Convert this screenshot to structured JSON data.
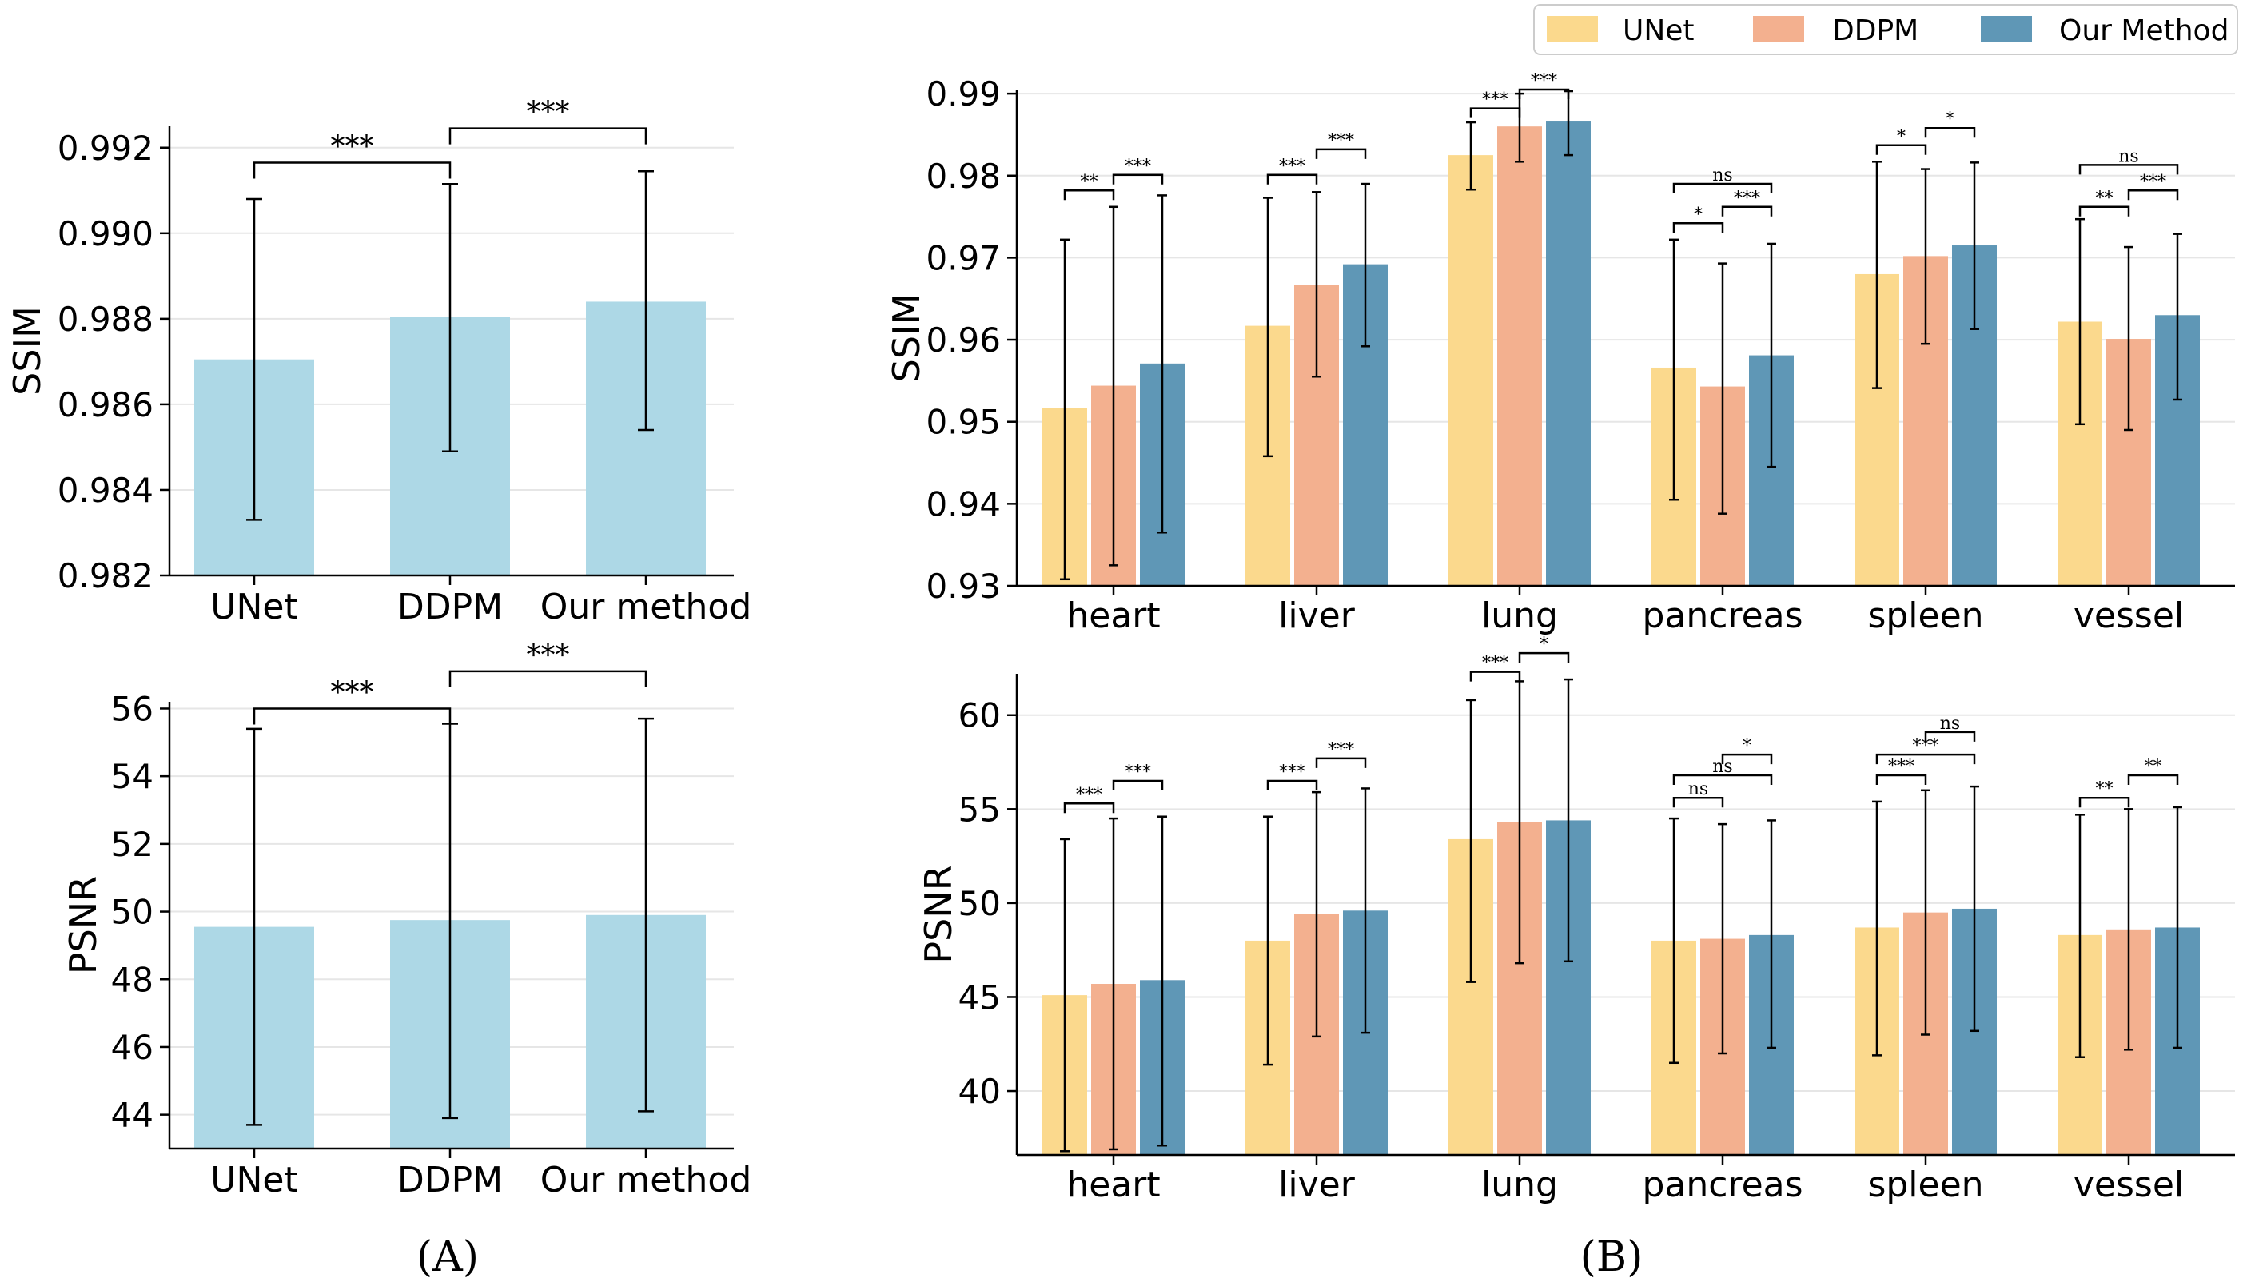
{
  "colors": {
    "single_bar": "#add8e6",
    "UNet": "#fbd98d",
    "DDPM": "#f3b08f",
    "Our Method": "#5f97b6",
    "error": "#000000",
    "grid": "#e6e6e6"
  },
  "labels": {
    "panel_a": "(A)",
    "panel_b": "(B)"
  },
  "legend": [
    "UNet",
    "DDPM",
    "Our Method"
  ],
  "chart_data": [
    {
      "id": "A-ssim",
      "type": "bar",
      "ylabel": "SSIM",
      "categories": [
        "UNet",
        "DDPM",
        "Our method"
      ],
      "values": [
        0.98705,
        0.98805,
        0.9884
      ],
      "err_low": [
        0.9833,
        0.9849,
        0.9854
      ],
      "err_high": [
        0.9908,
        0.99115,
        0.99145
      ],
      "ylim": [
        0.982,
        0.9925
      ],
      "yticks": [
        0.982,
        0.984,
        0.986,
        0.988,
        0.99,
        0.992
      ],
      "ytick_labels": [
        "0.982",
        "0.984",
        "0.986",
        "0.988",
        "0.990",
        "0.992"
      ],
      "sig": [
        {
          "a": 0,
          "b": 1,
          "label": "***",
          "y": 0.99165
        },
        {
          "a": 1,
          "b": 2,
          "label": "***",
          "y": 0.99245
        }
      ]
    },
    {
      "id": "A-psnr",
      "type": "bar",
      "ylabel": "PSNR",
      "categories": [
        "UNet",
        "DDPM",
        "Our method"
      ],
      "values": [
        49.55,
        49.75,
        49.9
      ],
      "err_low": [
        43.7,
        43.9,
        44.1
      ],
      "err_high": [
        55.4,
        55.55,
        55.7
      ],
      "ylim": [
        43,
        56.2
      ],
      "yticks": [
        44,
        46,
        48,
        50,
        52,
        54,
        56
      ],
      "ytick_labels": [
        "44",
        "46",
        "48",
        "50",
        "52",
        "54",
        "56"
      ],
      "sig": [
        {
          "a": 0,
          "b": 1,
          "label": "***",
          "y": 56.0
        },
        {
          "a": 1,
          "b": 2,
          "label": "***",
          "y": 57.1
        }
      ]
    },
    {
      "id": "B-ssim",
      "type": "bar",
      "ylabel": "SSIM",
      "categories": [
        "heart",
        "liver",
        "lung",
        "pancreas",
        "spleen",
        "vessel"
      ],
      "series": [
        {
          "name": "UNet",
          "values": [
            0.9517,
            0.9617,
            0.9825,
            0.9566,
            0.968,
            0.9622
          ],
          "err_low": [
            0.9308,
            0.9458,
            0.9783,
            0.9405,
            0.9541,
            0.9497
          ],
          "err_high": [
            0.9722,
            0.9773,
            0.9865,
            0.9722,
            0.9817,
            0.9747
          ]
        },
        {
          "name": "DDPM",
          "values": [
            0.9544,
            0.9667,
            0.986,
            0.9543,
            0.9702,
            0.9601
          ],
          "err_low": [
            0.9325,
            0.9555,
            0.9817,
            0.9388,
            0.9595,
            0.949
          ],
          "err_high": [
            0.9762,
            0.978,
            0.99,
            0.9693,
            0.9808,
            0.9713
          ]
        },
        {
          "name": "Our Method",
          "values": [
            0.9571,
            0.9692,
            0.9866,
            0.9581,
            0.9715,
            0.963
          ],
          "err_low": [
            0.9365,
            0.9592,
            0.9825,
            0.9445,
            0.9613,
            0.9527
          ],
          "err_high": [
            0.9776,
            0.979,
            0.9903,
            0.9717,
            0.9816,
            0.9729
          ]
        }
      ],
      "ylim": [
        0.93,
        0.9905
      ],
      "yticks": [
        0.93,
        0.94,
        0.95,
        0.96,
        0.97,
        0.98,
        0.99
      ],
      "ytick_labels": [
        "0.93",
        "0.94",
        "0.95",
        "0.96",
        "0.97",
        "0.98",
        "0.99"
      ],
      "sig": [
        {
          "cat": 0,
          "a": 0,
          "b": 1,
          "label": "**",
          "y": 0.9782
        },
        {
          "cat": 0,
          "a": 1,
          "b": 2,
          "label": "***",
          "y": 0.9801
        },
        {
          "cat": 1,
          "a": 0,
          "b": 1,
          "label": "***",
          "y": 0.9801
        },
        {
          "cat": 1,
          "a": 1,
          "b": 2,
          "label": "***",
          "y": 0.9832
        },
        {
          "cat": 2,
          "a": 0,
          "b": 1,
          "label": "***",
          "y": 0.9882
        },
        {
          "cat": 2,
          "a": 1,
          "b": 2,
          "label": "***",
          "y": 0.9905
        },
        {
          "cat": 3,
          "a": 0,
          "b": 1,
          "label": "*",
          "y": 0.9742
        },
        {
          "cat": 3,
          "a": 1,
          "b": 2,
          "label": "***",
          "y": 0.9762
        },
        {
          "cat": 3,
          "a": 0,
          "b": 2,
          "label": "ns",
          "y": 0.979
        },
        {
          "cat": 4,
          "a": 0,
          "b": 1,
          "label": "*",
          "y": 0.9837
        },
        {
          "cat": 4,
          "a": 1,
          "b": 2,
          "label": "*",
          "y": 0.9858
        },
        {
          "cat": 5,
          "a": 0,
          "b": 1,
          "label": "**",
          "y": 0.9762
        },
        {
          "cat": 5,
          "a": 1,
          "b": 2,
          "label": "***",
          "y": 0.9782
        },
        {
          "cat": 5,
          "a": 0,
          "b": 2,
          "label": "ns",
          "y": 0.9813
        }
      ]
    },
    {
      "id": "B-psnr",
      "type": "bar",
      "ylabel": "PSNR",
      "categories": [
        "heart",
        "liver",
        "lung",
        "pancreas",
        "spleen",
        "vessel"
      ],
      "series": [
        {
          "name": "UNet",
          "values": [
            45.1,
            48.0,
            53.4,
            48.0,
            48.7,
            48.3
          ],
          "err_low": [
            36.8,
            41.4,
            45.8,
            41.5,
            41.9,
            41.8
          ],
          "err_high": [
            53.4,
            54.6,
            60.8,
            54.5,
            55.4,
            54.7
          ]
        },
        {
          "name": "DDPM",
          "values": [
            45.7,
            49.4,
            54.3,
            48.1,
            49.5,
            48.6
          ],
          "err_low": [
            36.9,
            42.9,
            46.8,
            42.0,
            43.0,
            42.2
          ],
          "err_high": [
            54.5,
            55.9,
            61.8,
            54.2,
            56.0,
            55.0
          ]
        },
        {
          "name": "Our Method",
          "values": [
            45.9,
            49.6,
            54.4,
            48.3,
            49.7,
            48.7
          ],
          "err_low": [
            37.1,
            43.1,
            46.9,
            42.3,
            43.2,
            42.3
          ],
          "err_high": [
            54.6,
            56.1,
            61.9,
            54.4,
            56.2,
            55.1
          ]
        }
      ],
      "ylim": [
        36.6,
        62.2
      ],
      "yticks": [
        40,
        45,
        50,
        55,
        60
      ],
      "ytick_labels": [
        "40",
        "45",
        "50",
        "55",
        "60"
      ],
      "sig": [
        {
          "cat": 0,
          "a": 0,
          "b": 1,
          "label": "***",
          "y": 55.3
        },
        {
          "cat": 0,
          "a": 1,
          "b": 2,
          "label": "***",
          "y": 56.5
        },
        {
          "cat": 1,
          "a": 0,
          "b": 1,
          "label": "***",
          "y": 56.5
        },
        {
          "cat": 1,
          "a": 1,
          "b": 2,
          "label": "***",
          "y": 57.7
        },
        {
          "cat": 2,
          "a": 0,
          "b": 1,
          "label": "***",
          "y": 62.3
        },
        {
          "cat": 2,
          "a": 1,
          "b": 2,
          "label": "*",
          "y": 63.3
        },
        {
          "cat": 3,
          "a": 0,
          "b": 1,
          "label": "ns",
          "y": 55.6
        },
        {
          "cat": 3,
          "a": 0,
          "b": 2,
          "label": "ns",
          "y": 56.8
        },
        {
          "cat": 3,
          "a": 1,
          "b": 2,
          "label": "*",
          "y": 57.9
        },
        {
          "cat": 4,
          "a": 0,
          "b": 1,
          "label": "***",
          "y": 56.8
        },
        {
          "cat": 4,
          "a": 0,
          "b": 2,
          "label": "***",
          "y": 57.9
        },
        {
          "cat": 4,
          "a": 1,
          "b": 2,
          "label": "ns",
          "y": 59.1
        },
        {
          "cat": 5,
          "a": 0,
          "b": 1,
          "label": "**",
          "y": 55.6
        },
        {
          "cat": 5,
          "a": 1,
          "b": 2,
          "label": "**",
          "y": 56.8
        }
      ]
    }
  ]
}
